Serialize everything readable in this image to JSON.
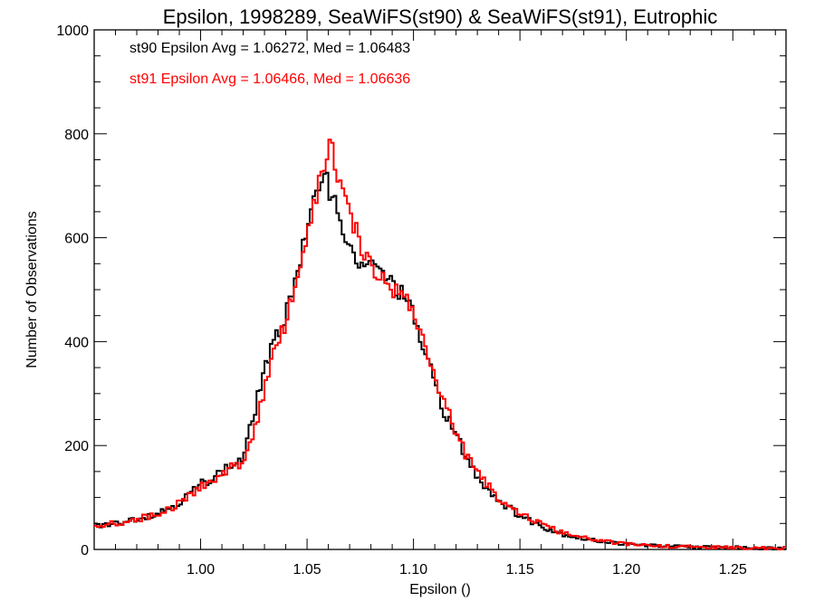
{
  "chart_data": {
    "type": "line",
    "title": "Epsilon, 1998289, SeaWiFS(st90) & SeaWiFS(st91), Eutrophic",
    "xlabel": "Epsilon ()",
    "ylabel": "Number of Observations",
    "xlim": [
      0.95,
      1.275
    ],
    "ylim": [
      0,
      1000
    ],
    "x_ticks": [
      1.0,
      1.05,
      1.1,
      1.15,
      1.2,
      1.25
    ],
    "x_tick_labels": [
      "1.00",
      "1.05",
      "1.10",
      "1.15",
      "1.20",
      "1.25"
    ],
    "y_ticks": [
      0,
      200,
      400,
      600,
      800,
      1000
    ],
    "y_tick_labels": [
      "0",
      "200",
      "400",
      "600",
      "800",
      "1000"
    ],
    "step": "histogram",
    "annotations": [
      "st90 Epsilon Avg = 1.06272, Med = 1.06483",
      "st91 Epsilon Avg = 1.06466, Med = 1.06636"
    ],
    "colors": {
      "st90": "#000000",
      "st91": "#ff0000"
    },
    "series": [
      {
        "color": "#000000",
        "x": [
          0.95,
          0.96,
          0.97,
          0.98,
          0.99,
          1.0,
          1.01,
          1.02,
          1.025,
          1.03,
          1.035,
          1.04,
          1.045,
          1.05,
          1.055,
          1.058,
          1.06,
          1.065,
          1.07,
          1.075,
          1.08,
          1.085,
          1.09,
          1.095,
          1.1,
          1.105,
          1.11,
          1.115,
          1.12,
          1.125,
          1.13,
          1.14,
          1.15,
          1.16,
          1.17,
          1.18,
          1.19,
          1.2,
          1.22,
          1.24,
          1.26,
          1.275
        ],
        "y": [
          45,
          50,
          60,
          70,
          90,
          125,
          150,
          175,
          260,
          350,
          400,
          455,
          530,
          610,
          690,
          740,
          700,
          650,
          570,
          550,
          545,
          535,
          510,
          490,
          450,
          380,
          320,
          260,
          220,
          175,
          140,
          95,
          65,
          45,
          30,
          20,
          15,
          10,
          6,
          4,
          3,
          2
        ]
      },
      {
        "color": "#ff0000",
        "x": [
          0.95,
          0.96,
          0.97,
          0.98,
          0.99,
          1.0,
          1.01,
          1.02,
          1.025,
          1.03,
          1.035,
          1.04,
          1.045,
          1.05,
          1.055,
          1.058,
          1.061,
          1.065,
          1.07,
          1.075,
          1.08,
          1.085,
          1.09,
          1.095,
          1.1,
          1.105,
          1.11,
          1.115,
          1.12,
          1.125,
          1.13,
          1.14,
          1.15,
          1.16,
          1.17,
          1.18,
          1.19,
          1.2,
          1.22,
          1.24,
          1.26,
          1.275
        ],
        "y": [
          45,
          50,
          58,
          68,
          88,
          120,
          145,
          170,
          225,
          310,
          380,
          440,
          520,
          600,
          690,
          740,
          785,
          710,
          640,
          590,
          545,
          520,
          505,
          490,
          460,
          395,
          335,
          275,
          225,
          180,
          145,
          100,
          70,
          48,
          32,
          22,
          16,
          10,
          6,
          4,
          3,
          2
        ]
      }
    ]
  }
}
